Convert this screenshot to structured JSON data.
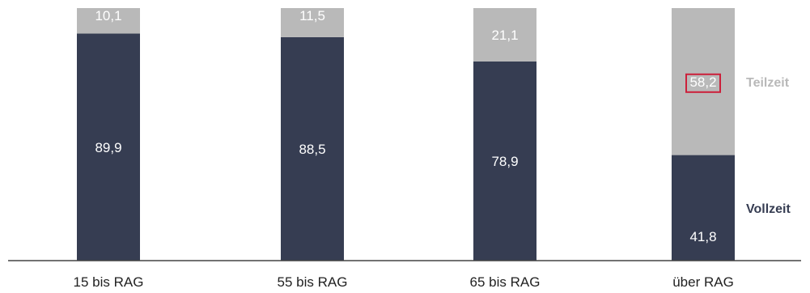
{
  "chart_data": {
    "type": "bar",
    "stacked": true,
    "percent_stacked": true,
    "categories": [
      "15 bis RAG",
      "55 bis RAG",
      "65 bis RAG",
      "über RAG"
    ],
    "series": [
      {
        "name": "Vollzeit",
        "values": [
          89.9,
          88.5,
          78.9,
          41.8
        ],
        "labels": [
          "89,9",
          "88,5",
          "78,9",
          "41,8"
        ],
        "color": "#363d52"
      },
      {
        "name": "Teilzeit",
        "values": [
          10.1,
          11.5,
          21.1,
          58.2
        ],
        "labels": [
          "10,1",
          "11,5",
          "21,1",
          "58,2"
        ],
        "color": "#b9b9b9"
      }
    ],
    "ylim": [
      0,
      100
    ],
    "legend": "right",
    "grid": false,
    "highlight": {
      "series": "Teilzeit",
      "category": "über RAG",
      "color": "#cc1f3a"
    }
  }
}
